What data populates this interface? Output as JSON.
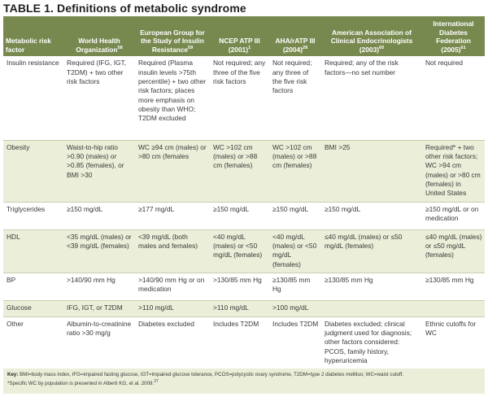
{
  "title": "TABLE 1. Definitions of metabolic syndrome",
  "columns": [
    {
      "label": "Metabolic risk factor",
      "ref": ""
    },
    {
      "label": "World Health Organization",
      "ref": "58"
    },
    {
      "label": "European Group for the Study of Insulin Resistance",
      "ref": "59"
    },
    {
      "label": "NCEP ATP III (2001)",
      "ref": "1"
    },
    {
      "label": "AHA/rATP III (2004)",
      "ref": "28"
    },
    {
      "label": "American Association of Clinical Endocrinologists (2003)",
      "ref": "60"
    },
    {
      "label": "International Diabetes Federation (2005)",
      "ref": "61"
    }
  ],
  "rows": [
    {
      "factor": "Insulin resistance",
      "cells": [
        "Required (IFG, IGT, T2DM) + two other risk factors",
        "Required (Plasma insulin levels >75th percentile) + two other risk factors; places more emphasis on obesity than WHO; T2DM excluded",
        "Not required; any three of the five risk factors",
        "Not required; any three of the five risk factors",
        "Required; any of the risk factors—no set number",
        "Not required"
      ]
    },
    {
      "factor": "Obesity",
      "cells": [
        "Waist-to-hip ratio >0.90 (males) or >0.85 (females), or BMI >30",
        "WC ≥94 cm (males) or >80 cm (females",
        "WC >102 cm (males) or >88 cm (females)",
        "WC >102 cm (males) or >88 cm (females)",
        "BMI >25",
        "Required* + two other risk factors; WC >94 cm (males) or >80 cm (females) in United States"
      ]
    },
    {
      "factor": "Triglycerides",
      "cells": [
        "≥150 mg/dL",
        "≥177 mg/dL",
        "≥150 mg/dL",
        "≥150 mg/dL",
        "≥150 mg/dL",
        "≥150 mg/dL or on medication"
      ]
    },
    {
      "factor": "HDL",
      "cells": [
        "<35 mg/dL (males) or <39 mg/dL (females)",
        "<39 mg/dL (both males and females)",
        "<40 mg/dL (males) or <50 mg/dL (females)",
        "<40 mg/dL (males) or <50 mg/dL (females)",
        "≤40 mg/dL (males) or ≤50 mg/dL (females)",
        "≤40 mg/dL (males) or ≤50 mg/dL (females)"
      ]
    },
    {
      "factor": "BP",
      "cells": [
        ">140/90 mm Hg",
        ">140/90 mm Hg or on medication",
        ">130/85 mm Hg",
        "≥130/85 mm Hg",
        "≥130/85 mm Hg",
        "≥130/85 mm Hg"
      ]
    },
    {
      "factor": "Glucose",
      "cells": [
        "IFG, IGT, or T2DM",
        ">110 mg/dL",
        ">110 mg/dL",
        ">100 mg/dL",
        "",
        ""
      ]
    },
    {
      "factor": "Other",
      "cells": [
        "Albumin-to-creatinine ratio >30 mg/g",
        "Diabetes excluded",
        "Includes T2DM",
        "Includes T2DM",
        "Diabetes excluded; clinical judgment used for diagnosis; other factors considered: PCOS, family history, hyperuricemia",
        "Ethnic cutoffs for WC"
      ]
    }
  ],
  "key": {
    "label": "Key:",
    "text": "BMI=body mass index, IFG=impaired fasting glucose, IGT=impaired glucose tolerance, PCOS=polycystic ovary syndrome, T2DM=type 2 diabetes mellitus; WC=waist cutoff.",
    "footnote": "*Specific WC by population is presented in Alberti KG, et al. 2009.",
    "footnote_ref": "27"
  }
}
